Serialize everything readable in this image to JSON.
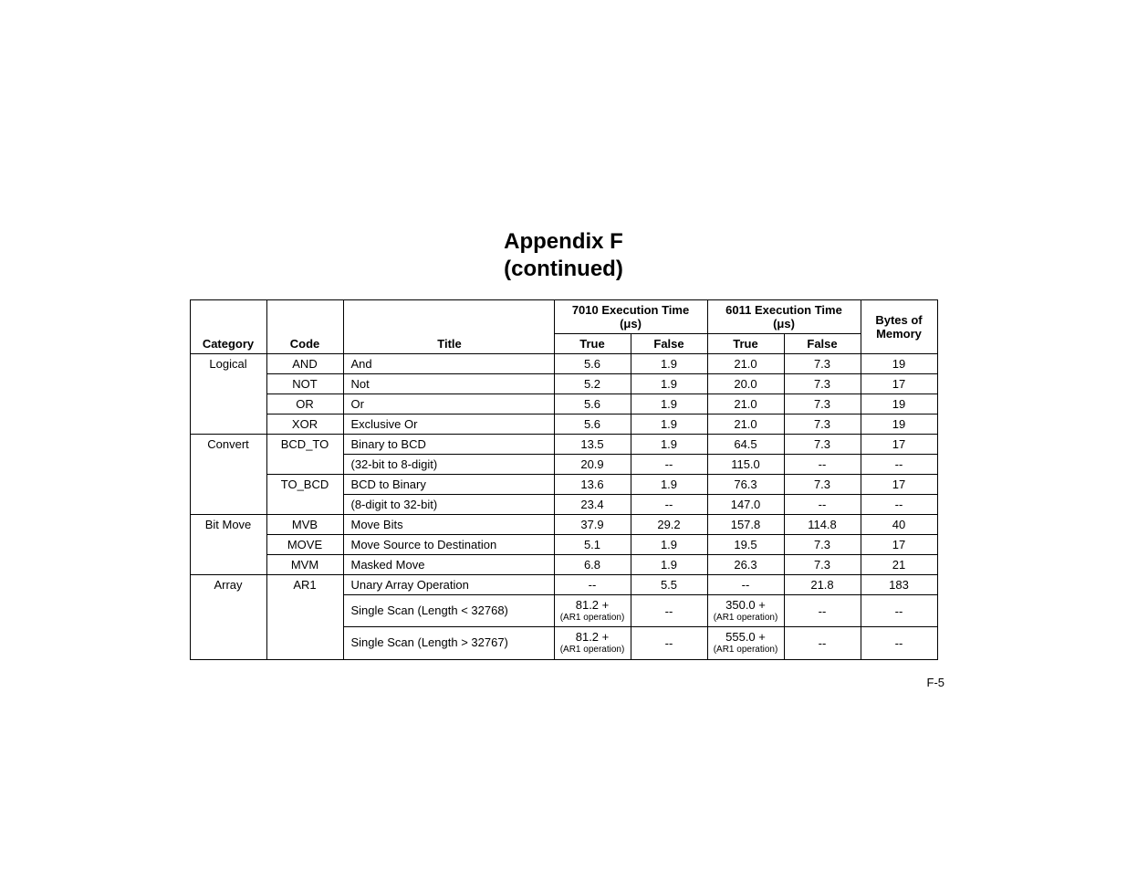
{
  "title1": "Appendix F",
  "title2": "(continued)",
  "headers": {
    "category": "Category",
    "code": "Code",
    "title": "Title",
    "exec7010": "7010 Execution Time",
    "exec6011": "6011 Execution Time",
    "unit": "(μs)",
    "true": "True",
    "false": "False",
    "bytes1": "Bytes of",
    "bytes2": "Memory"
  },
  "rows": {
    "r0": {
      "category": "Logical",
      "code": "AND",
      "title": "And",
      "t7010": "5.6",
      "f7010": "1.9",
      "t6011": "21.0",
      "f6011": "7.3",
      "bytes": "19"
    },
    "r1": {
      "code": "NOT",
      "title": "Not",
      "t7010": "5.2",
      "f7010": "1.9",
      "t6011": "20.0",
      "f6011": "7.3",
      "bytes": "17"
    },
    "r2": {
      "code": "OR",
      "title": "Or",
      "t7010": "5.6",
      "f7010": "1.9",
      "t6011": "21.0",
      "f6011": "7.3",
      "bytes": "19"
    },
    "r3": {
      "code": "XOR",
      "title": "Exclusive Or",
      "t7010": "5.6",
      "f7010": "1.9",
      "t6011": "21.0",
      "f6011": "7.3",
      "bytes": "19"
    },
    "r4": {
      "category": "Convert",
      "code": "BCD_TO",
      "title": "Binary to BCD",
      "t7010": "13.5",
      "f7010": "1.9",
      "t6011": "64.5",
      "f6011": "7.3",
      "bytes": "17"
    },
    "r5": {
      "title": "(32-bit to 8-digit)",
      "t7010": "20.9",
      "f7010": "--",
      "t6011": "115.0",
      "f6011": "--",
      "bytes": "--"
    },
    "r6": {
      "code": "TO_BCD",
      "title": "BCD to Binary",
      "t7010": "13.6",
      "f7010": "1.9",
      "t6011": "76.3",
      "f6011": "7.3",
      "bytes": "17"
    },
    "r7": {
      "title": "(8-digit to 32-bit)",
      "t7010": "23.4",
      "f7010": "--",
      "t6011": "147.0",
      "f6011": "--",
      "bytes": "--"
    },
    "r8": {
      "category": "Bit Move",
      "code": "MVB",
      "title": "Move Bits",
      "t7010": "37.9",
      "f7010": "29.2",
      "t6011": "157.8",
      "f6011": "114.8",
      "bytes": "40"
    },
    "r9": {
      "code": "MOVE",
      "title": "Move Source to Destination",
      "t7010": "5.1",
      "f7010": "1.9",
      "t6011": "19.5",
      "f6011": "7.3",
      "bytes": "17"
    },
    "r10": {
      "code": "MVM",
      "title": "Masked Move",
      "t7010": "6.8",
      "f7010": "1.9",
      "t6011": "26.3",
      "f6011": "7.3",
      "bytes": "21"
    },
    "r11": {
      "category": "Array",
      "code": "AR1",
      "title": "Unary Array Operation",
      "t7010": "--",
      "f7010": "5.5",
      "t6011": "--",
      "f6011": "21.8",
      "bytes": "183"
    },
    "r12": {
      "title": "Single Scan (Length < 32768)",
      "t7010a": "81.2 +",
      "t7010b": "(AR1 operation)",
      "f7010": "--",
      "t6011a": "350.0 +",
      "t6011b": "(AR1 operation)",
      "f6011": "--",
      "bytes": "--"
    },
    "r13": {
      "title": "Single Scan (Length > 32767)",
      "t7010a": "81.2 +",
      "t7010b": "(AR1 operation)",
      "f7010": "--",
      "t6011a": "555.0 +",
      "t6011b": "(AR1 operation)",
      "f6011": "--",
      "bytes": "--"
    }
  },
  "page_num": "F-5"
}
